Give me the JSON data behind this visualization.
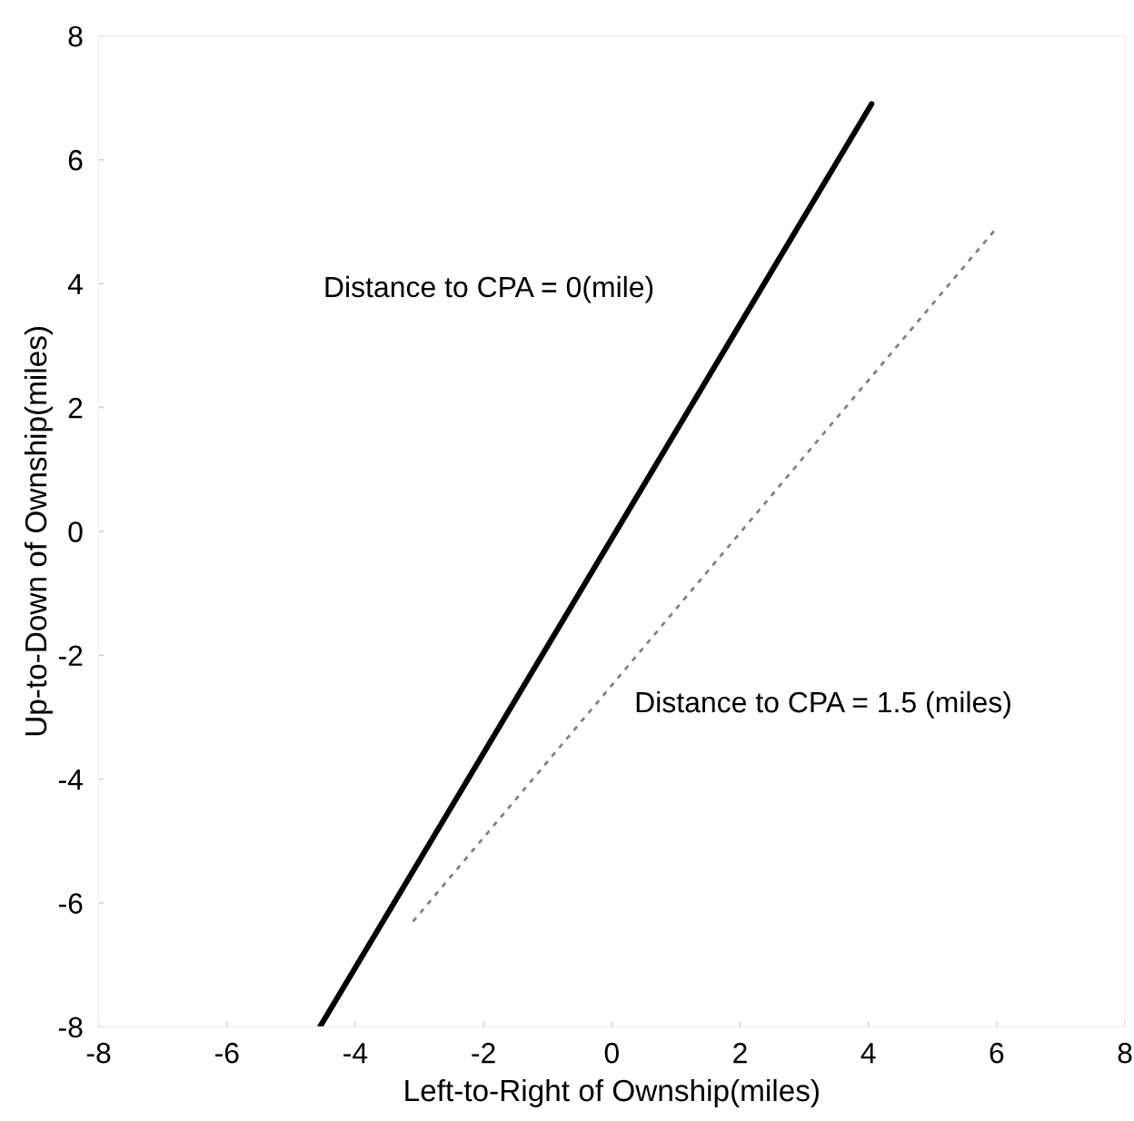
{
  "chart_data": {
    "type": "line",
    "xlabel": "Left-to-Right of Ownship(miles)",
    "ylabel": "Up-to-Down of Ownship(miles)",
    "xlim": [
      -8,
      8
    ],
    "ylim": [
      -8,
      8
    ],
    "xticks": [
      -8,
      -6,
      -4,
      -2,
      0,
      2,
      4,
      6,
      8
    ],
    "yticks": [
      -8,
      -6,
      -4,
      -2,
      0,
      2,
      4,
      6,
      8
    ],
    "grid": false,
    "legend": false,
    "series": [
      {
        "color": "#000000",
        "line_style": "solid",
        "x": [
          -4.55,
          4.05
        ],
        "values": [
          -8,
          6.9
        ]
      },
      {
        "color": "#808080",
        "line_style": "dashed",
        "x": [
          -3.1,
          6
        ],
        "values": [
          -6.3,
          4.9
        ]
      }
    ],
    "annotations": [
      "Distance to CPA = 0(mile)",
      "Distance to CPA = 1.5 (miles)"
    ]
  }
}
